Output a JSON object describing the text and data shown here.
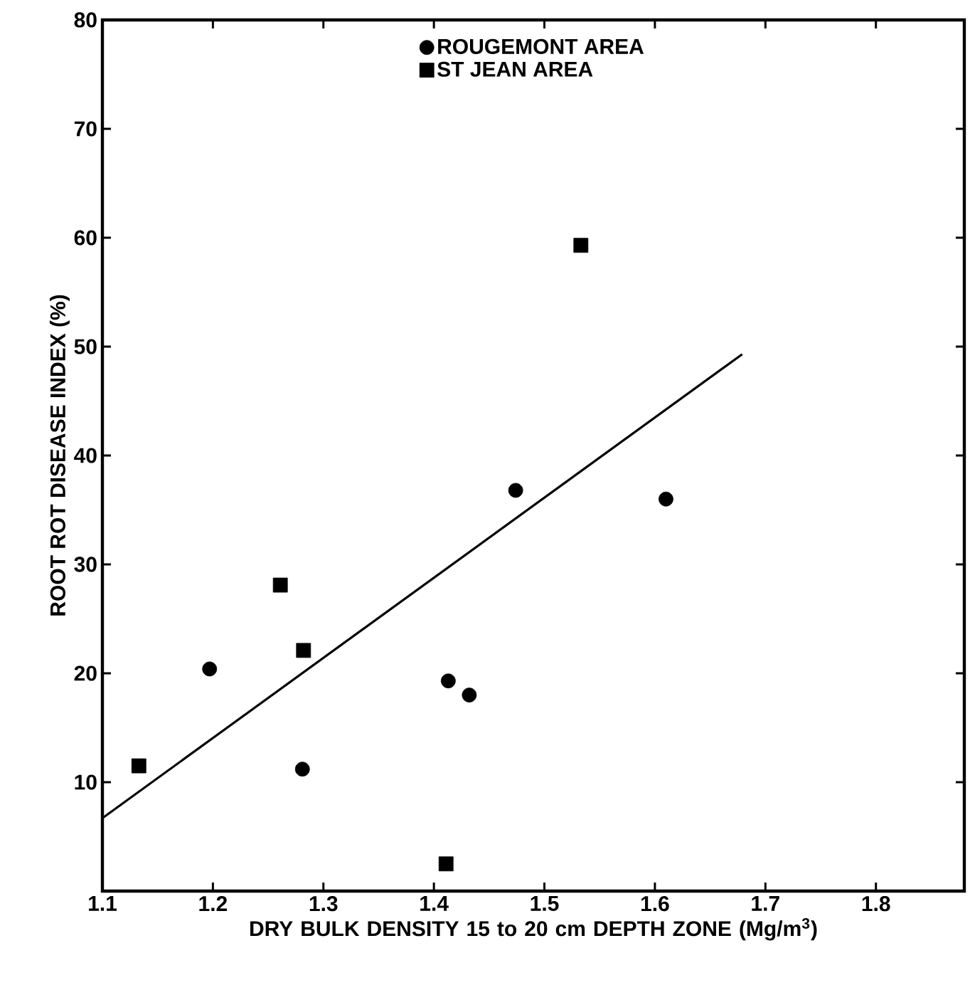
{
  "chart_data": {
    "type": "scatter",
    "xlabel": "DRY BULK DENSITY   15 to 20 cm DEPTH ZONE (Mg/m$^{3}$)",
    "ylabel": "ROOT ROT DISEASE INDEX (%)",
    "xlim": [
      1.1,
      1.88
    ],
    "ylim": [
      0,
      80
    ],
    "xticks": [
      1.1,
      1.2,
      1.3,
      1.4,
      1.5,
      1.6,
      1.7,
      1.8
    ],
    "yticks": [
      10,
      20,
      30,
      40,
      50,
      60,
      70,
      80
    ],
    "legend": "top",
    "series": [
      {
        "name": "ROUGEMONT AREA",
        "color": "#000000",
        "marker": "circle",
        "x": [
          1.197,
          1.281,
          1.413,
          1.432,
          1.474,
          1.61
        ],
        "values": [
          20.4,
          11.2,
          19.3,
          18.0,
          36.8,
          36.0
        ]
      },
      {
        "name": "ST JEAN AREA",
        "color": "#000000",
        "marker": "square",
        "x": [
          1.133,
          1.261,
          1.282,
          1.411,
          1.533
        ],
        "values": [
          11.5,
          28.1,
          22.1,
          2.5,
          59.3
        ]
      },
      {
        "type": "line",
        "color": "#000000",
        "marker": "none",
        "x": [
          1.1,
          1.679
        ],
        "values": [
          6.7,
          49.3
        ]
      }
    ]
  }
}
